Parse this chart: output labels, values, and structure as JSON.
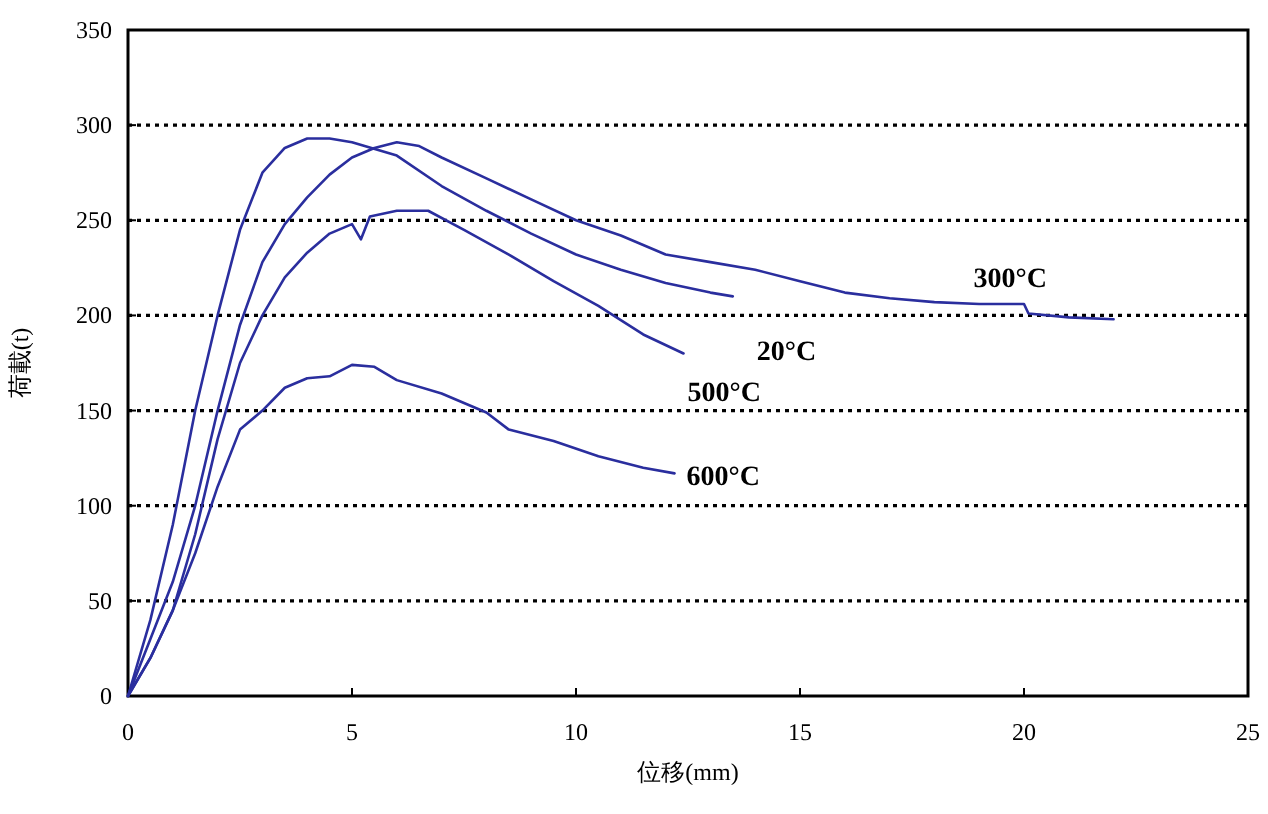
{
  "chart_data": {
    "type": "line",
    "xlabel": "位移(mm)",
    "ylabel": "荷載(t)",
    "xlim": [
      0,
      25
    ],
    "xticks": [
      0,
      5,
      10,
      15,
      20,
      25
    ],
    "ylim": [
      0,
      350
    ],
    "yticks": [
      0,
      50,
      100,
      150,
      200,
      250,
      300,
      350
    ],
    "grid": "y",
    "line_style": "solid",
    "series": [
      {
        "name": "20°C",
        "color": "#2a2e9e",
        "x": [
          0,
          0.5,
          1,
          1.5,
          2,
          2.5,
          3,
          3.5,
          4,
          4.5,
          5,
          6,
          7,
          8,
          9,
          10,
          11,
          12,
          13,
          13.5
        ],
        "values": [
          0,
          40,
          90,
          150,
          200,
          245,
          275,
          288,
          293,
          293,
          291,
          284,
          268,
          255,
          243,
          232,
          224,
          217,
          212,
          210
        ]
      },
      {
        "name": "300°C",
        "color": "#2a2e9e",
        "x": [
          0,
          0.5,
          1,
          1.5,
          2,
          2.5,
          3,
          3.5,
          4,
          4.5,
          5,
          5.5,
          6,
          6.5,
          7,
          8,
          9,
          10,
          11,
          12,
          13,
          14,
          15,
          16,
          17,
          18,
          19,
          20,
          20.1,
          21,
          22
        ],
        "values": [
          0,
          30,
          60,
          100,
          150,
          195,
          228,
          248,
          262,
          274,
          283,
          288,
          291,
          289,
          283,
          272,
          261,
          250,
          242,
          232,
          228,
          224,
          218,
          212,
          209,
          207,
          206,
          206,
          201,
          199,
          198
        ]
      },
      {
        "name": "500°C",
        "color": "#2a2e9e",
        "x": [
          0,
          0.5,
          1,
          1.5,
          2,
          2.5,
          3,
          3.5,
          4,
          4.5,
          5,
          5.2,
          5.4,
          6,
          6.7,
          7.5,
          8.5,
          9.5,
          10.5,
          11.5,
          12.4
        ],
        "values": [
          0,
          20,
          45,
          85,
          135,
          175,
          200,
          220,
          233,
          243,
          248,
          240,
          252,
          255,
          255,
          245,
          232,
          218,
          205,
          190,
          180
        ]
      },
      {
        "name": "600°C",
        "color": "#2a2e9e",
        "x": [
          0,
          0.5,
          1,
          1.5,
          2,
          2.5,
          3,
          3.5,
          4,
          4.5,
          5,
          5.5,
          6,
          7,
          8,
          8.5,
          9.5,
          10.5,
          11.5,
          12.2
        ],
        "values": [
          0,
          20,
          45,
          75,
          110,
          140,
          150,
          162,
          167,
          168,
          174,
          173,
          166,
          159,
          149,
          140,
          134,
          126,
          120,
          117
        ]
      }
    ]
  }
}
